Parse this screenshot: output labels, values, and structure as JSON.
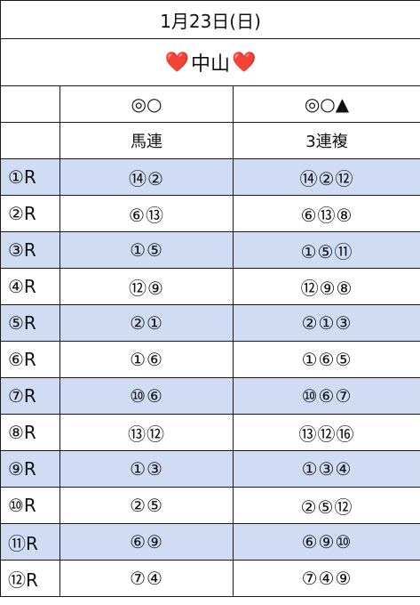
{
  "header": {
    "date": "1月23日(日)",
    "venue": "中山",
    "heart_glyph": "❤️",
    "heart_color": "#e8352a"
  },
  "columns": {
    "marks_a": "◎○",
    "marks_b": "◎○▲",
    "type_a": "馬連",
    "type_b": "3連複"
  },
  "style": {
    "shaded_row_color": "#cfdcf3",
    "border_color": "#1a1a1a"
  },
  "races": [
    {
      "race": "①R",
      "umaren": "⑭②",
      "sanrenpuku": "⑭②⑫",
      "shaded": true
    },
    {
      "race": "②R",
      "umaren": "⑥⑬",
      "sanrenpuku": "⑥⑬⑧",
      "shaded": false
    },
    {
      "race": "③R",
      "umaren": "①⑤",
      "sanrenpuku": "①⑤⑪",
      "shaded": true
    },
    {
      "race": "④R",
      "umaren": "⑫⑨",
      "sanrenpuku": "⑫⑨⑧",
      "shaded": false
    },
    {
      "race": "⑤R",
      "umaren": "②①",
      "sanrenpuku": "②①③",
      "shaded": true
    },
    {
      "race": "⑥R",
      "umaren": "①⑥",
      "sanrenpuku": "①⑥⑤",
      "shaded": false
    },
    {
      "race": "⑦R",
      "umaren": "⑩⑥",
      "sanrenpuku": "⑩⑥⑦",
      "shaded": true
    },
    {
      "race": "⑧R",
      "umaren": "⑬⑫",
      "sanrenpuku": "⑬⑫⑯",
      "shaded": false
    },
    {
      "race": "⑨R",
      "umaren": "①③",
      "sanrenpuku": "①③④",
      "shaded": true
    },
    {
      "race": "⑩R",
      "umaren": "②⑤",
      "sanrenpuku": "②⑤⑫",
      "shaded": false
    },
    {
      "race": "⑪R",
      "umaren": "⑥⑨",
      "sanrenpuku": "⑥⑨⑩",
      "shaded": true
    },
    {
      "race": "⑫R",
      "umaren": "⑦④",
      "sanrenpuku": "⑦④⑨",
      "shaded": false
    }
  ]
}
